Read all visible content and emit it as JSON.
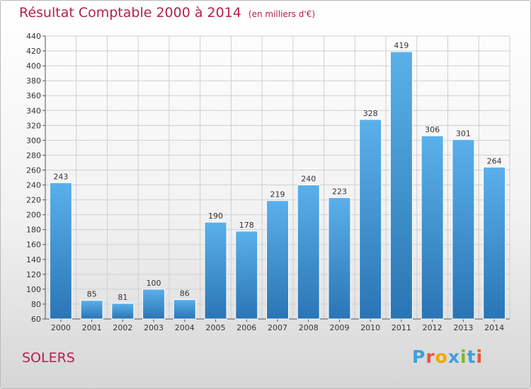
{
  "header": {
    "title": "Résultat Comptable 2000 à 2014",
    "subtitle": "(en milliers d'€)"
  },
  "footer": {
    "commune": "SOLERS",
    "logo_text": "Proxiti",
    "logo_colors": [
      "#3fa0d9",
      "#e8543c",
      "#f0a800",
      "#3fa0d9",
      "#7cb82f",
      "#3fa0d9",
      "#e8543c"
    ]
  },
  "colors": {
    "title": "#b5224a",
    "bar_top": "#5ab0ea",
    "bar_bottom": "#2a75b5",
    "grid": "#cfcfcf"
  },
  "chart_data": {
    "type": "bar",
    "categories": [
      "2000",
      "2001",
      "2002",
      "2003",
      "2004",
      "2005",
      "2006",
      "2007",
      "2008",
      "2009",
      "2010",
      "2011",
      "2012",
      "2013",
      "2014"
    ],
    "values": [
      243,
      85,
      81,
      100,
      86,
      190,
      178,
      219,
      240,
      223,
      328,
      419,
      306,
      301,
      264
    ],
    "title": "Résultat Comptable 2000 à 2014",
    "ylim": [
      60,
      440
    ],
    "ytick_step": 20,
    "grid": true
  }
}
